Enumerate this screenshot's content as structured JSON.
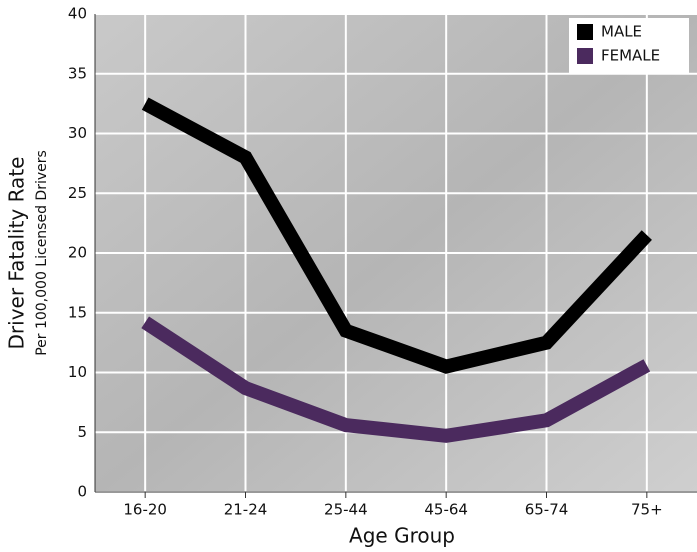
{
  "chart_data": {
    "type": "line",
    "x_label": "Age Group",
    "y_label": "Driver Fatality Rate",
    "y_sublabel": "Per 100,000 Licensed Drivers",
    "categories": [
      "16-20",
      "21-24",
      "25-44",
      "45-64",
      "65-74",
      "75+"
    ],
    "series": [
      {
        "name": "MALE",
        "color": "#000000",
        "values": [
          32.5,
          28,
          13.5,
          10.5,
          12.5,
          21.5
        ]
      },
      {
        "name": "FEMALE",
        "color": "#4b2a5e",
        "values": [
          14.2,
          8.7,
          5.6,
          4.7,
          6.0,
          10.6
        ]
      }
    ],
    "ylim": [
      0,
      40
    ],
    "yticks": [
      0,
      5,
      10,
      15,
      20,
      25,
      30,
      35,
      40
    ],
    "grid": true,
    "legend": "upper right"
  }
}
